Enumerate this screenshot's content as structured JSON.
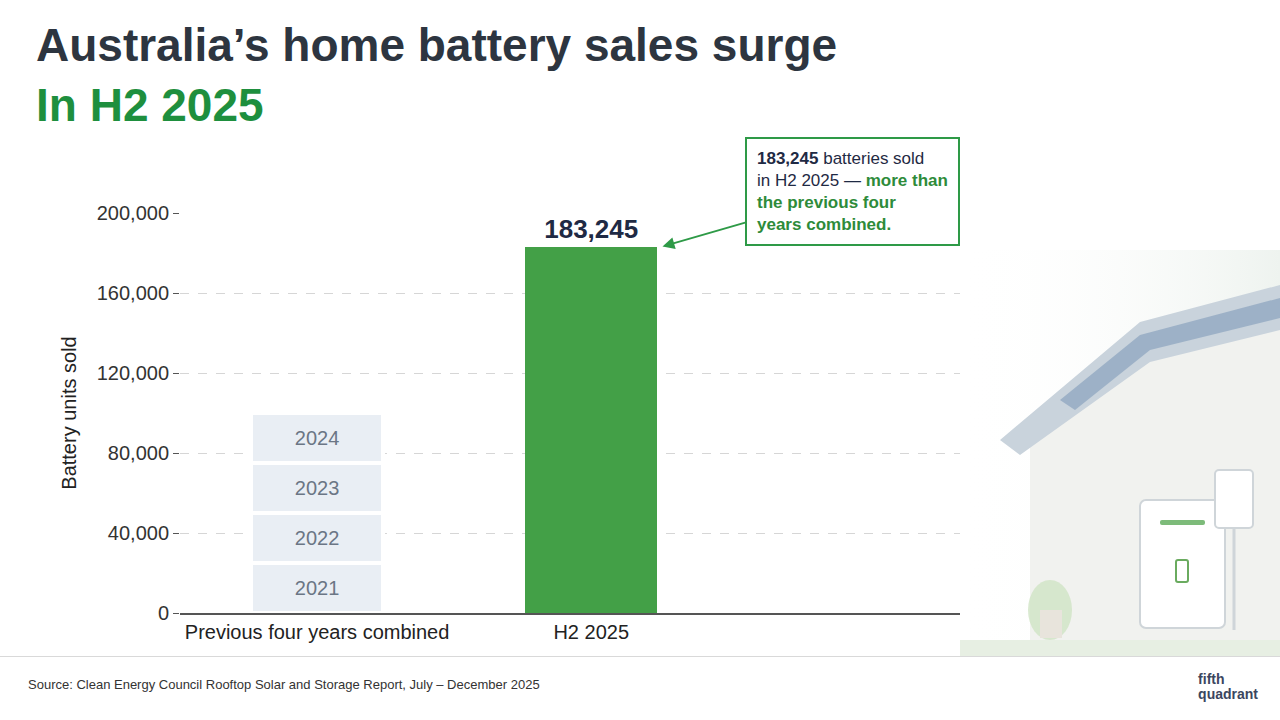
{
  "chart_data": {
    "type": "bar",
    "title": "Australia’s home battery sales surge",
    "subtitle": "In H2 2025",
    "y_label": "Battery units sold",
    "categories": [
      "Previous four years combined",
      "H2 2025"
    ],
    "stacked": true,
    "series": [
      {
        "name": "2021",
        "color": "#e9eef4",
        "values": [
          25000,
          null
        ]
      },
      {
        "name": "2022",
        "color": "#e9eef4",
        "values": [
          25000,
          null
        ]
      },
      {
        "name": "2023",
        "color": "#e9eef4",
        "values": [
          25000,
          null
        ]
      },
      {
        "name": "2024",
        "color": "#e9eef4",
        "values": [
          25000,
          null
        ]
      },
      {
        "name": "H2 2025",
        "color": "#43a047",
        "values": [
          null,
          183245
        ],
        "value_labels": [
          null,
          "183,245"
        ],
        "data_labels": true
      }
    ],
    "ylim": [
      0,
      200000
    ],
    "yticks": [
      0,
      {
        "value": 40000,
        "label": "40,000"
      },
      {
        "value": 80000,
        "label": "80,000"
      },
      {
        "value": 120000,
        "label": "120,000"
      },
      {
        "value": 160000,
        "label": "160,000"
      },
      {
        "value": 200000,
        "label": "200,000"
      }
    ],
    "grid": true,
    "annotation": {
      "text_parts": [
        "183,245",
        "batteries sold in H2 2025 —",
        "more than the previous four years combined."
      ],
      "points_to": "H2 2025"
    },
    "source": "Source: Clean Energy Council Rooftop Solar and Storage Report, July – December 2025",
    "logo": "fifth quadrant"
  }
}
